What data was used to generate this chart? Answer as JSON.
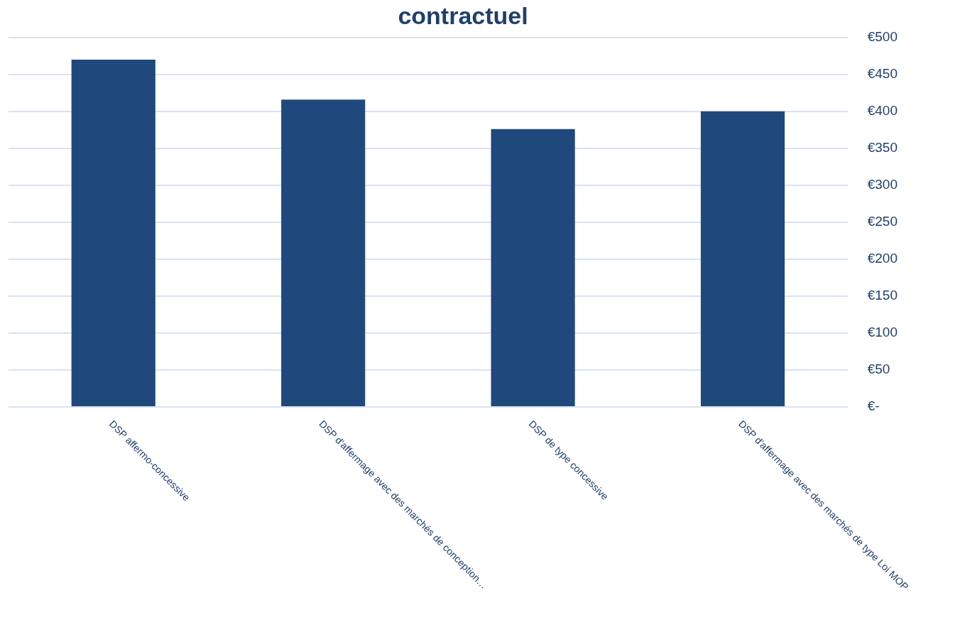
{
  "chart_data": {
    "type": "bar",
    "title": "contractuel",
    "categories": [
      "DSP affermo-concessive",
      "DSP d'affermage avec des marchés de conception…",
      "DSP de type concessive",
      "DSP d'affermage avec des marchés de type Loi MOP"
    ],
    "values": [
      470,
      416,
      376,
      400
    ],
    "color": "#1f497d",
    "ylim": [
      0,
      500
    ],
    "yticks": [
      {
        "value": 0,
        "label": "€-"
      },
      {
        "value": 50,
        "label": "€50"
      },
      {
        "value": 100,
        "label": "€100"
      },
      {
        "value": 150,
        "label": "€150"
      },
      {
        "value": 200,
        "label": "€200"
      },
      {
        "value": 250,
        "label": "€250"
      },
      {
        "value": 300,
        "label": "€300"
      },
      {
        "value": 350,
        "label": "€350"
      },
      {
        "value": 400,
        "label": "€400"
      },
      {
        "value": 450,
        "label": "€450"
      },
      {
        "value": 500,
        "label": "€500"
      }
    ],
    "grid": "y",
    "legend": false
  }
}
